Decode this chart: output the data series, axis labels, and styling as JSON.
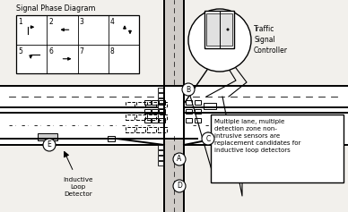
{
  "bg_color": "#f2f0ec",
  "title": "Signal Phase Diagram",
  "traffic_controller_text": "Traffic\nSignal\nController",
  "inductive_loop_text": "Inductive\nLoop\nDetector",
  "annotation_text": "Multiple lane, multiple\ndetection zone non-\nintrusive sensors are\nreplacement candidates for\ninductive loop detectors",
  "fig_width": 3.88,
  "fig_height": 2.37,
  "dpi": 100
}
